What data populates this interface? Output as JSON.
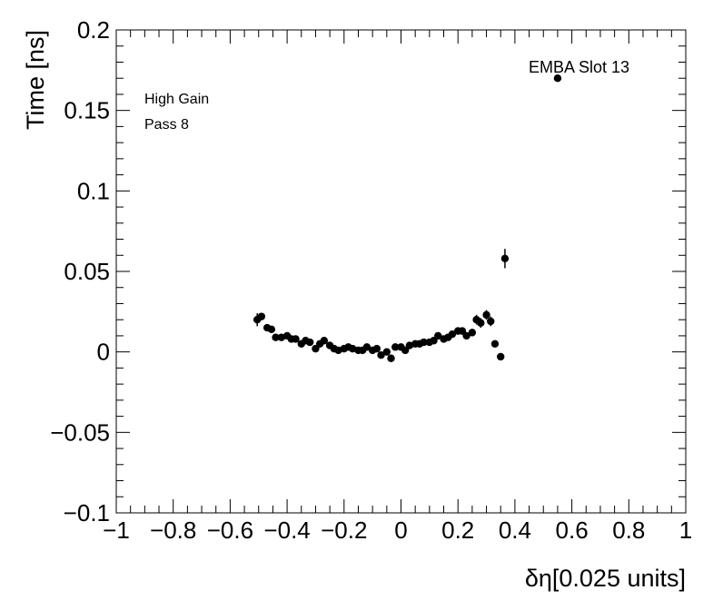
{
  "chart_data": {
    "type": "scatter",
    "title": "",
    "xlabel": "δη[0.025 units]",
    "ylabel": "Time [ns]",
    "xlim": [
      -1,
      1
    ],
    "ylim": [
      -0.1,
      0.2
    ],
    "x_ticks": [
      -1,
      -0.8,
      -0.6,
      -0.4,
      -0.2,
      0,
      0.2,
      0.4,
      0.6,
      0.8,
      1
    ],
    "x_tick_labels": [
      "−1",
      "−0.8",
      "−0.6",
      "−0.4",
      "−0.2",
      "0",
      "0.2",
      "0.4",
      "0.6",
      "0.8",
      "1"
    ],
    "y_ticks": [
      -0.1,
      -0.05,
      0,
      0.05,
      0.1,
      0.15,
      0.2
    ],
    "y_tick_labels": [
      "−0.1",
      "−0.05",
      "0",
      "0.05",
      "0.1",
      "0.15",
      "0.2"
    ],
    "annotations": [
      "High Gain",
      "Pass 8",
      "EMBA Slot 13"
    ],
    "grid": false,
    "marker_color": "#000000",
    "points": [
      {
        "x": -0.505,
        "y": 0.02,
        "err": 0.004
      },
      {
        "x": -0.49,
        "y": 0.022,
        "err": 0.002
      },
      {
        "x": -0.47,
        "y": 0.015,
        "err": 0.002
      },
      {
        "x": -0.455,
        "y": 0.014,
        "err": 0.002
      },
      {
        "x": -0.44,
        "y": 0.009,
        "err": 0.002
      },
      {
        "x": -0.42,
        "y": 0.009,
        "err": 0.002
      },
      {
        "x": -0.4,
        "y": 0.01,
        "err": 0.002
      },
      {
        "x": -0.385,
        "y": 0.008,
        "err": 0.002
      },
      {
        "x": -0.37,
        "y": 0.008,
        "err": 0.002
      },
      {
        "x": -0.35,
        "y": 0.005,
        "err": 0.002
      },
      {
        "x": -0.335,
        "y": 0.007,
        "err": 0.002
      },
      {
        "x": -0.32,
        "y": 0.006,
        "err": 0.002
      },
      {
        "x": -0.3,
        "y": 0.002,
        "err": 0.002
      },
      {
        "x": -0.285,
        "y": 0.005,
        "err": 0.002
      },
      {
        "x": -0.27,
        "y": 0.007,
        "err": 0.002
      },
      {
        "x": -0.25,
        "y": 0.004,
        "err": 0.002
      },
      {
        "x": -0.235,
        "y": 0.002,
        "err": 0.002
      },
      {
        "x": -0.22,
        "y": 0.001,
        "err": 0.002
      },
      {
        "x": -0.2,
        "y": 0.002,
        "err": 0.002
      },
      {
        "x": -0.185,
        "y": 0.003,
        "err": 0.002
      },
      {
        "x": -0.17,
        "y": 0.002,
        "err": 0.002
      },
      {
        "x": -0.15,
        "y": 0.001,
        "err": 0.002
      },
      {
        "x": -0.135,
        "y": 0.001,
        "err": 0.002
      },
      {
        "x": -0.12,
        "y": 0.003,
        "err": 0.002
      },
      {
        "x": -0.1,
        "y": 0.001,
        "err": 0.002
      },
      {
        "x": -0.085,
        "y": 0.002,
        "err": 0.002
      },
      {
        "x": -0.07,
        "y": -0.002,
        "err": 0.002
      },
      {
        "x": -0.05,
        "y": 0.0,
        "err": 0.002
      },
      {
        "x": -0.035,
        "y": -0.004,
        "err": 0.002
      },
      {
        "x": -0.02,
        "y": 0.003,
        "err": 0.002
      },
      {
        "x": 0.0,
        "y": 0.003,
        "err": 0.002
      },
      {
        "x": 0.015,
        "y": 0.001,
        "err": 0.002
      },
      {
        "x": 0.03,
        "y": 0.004,
        "err": 0.002
      },
      {
        "x": 0.05,
        "y": 0.005,
        "err": 0.002
      },
      {
        "x": 0.065,
        "y": 0.005,
        "err": 0.002
      },
      {
        "x": 0.08,
        "y": 0.006,
        "err": 0.002
      },
      {
        "x": 0.1,
        "y": 0.006,
        "err": 0.002
      },
      {
        "x": 0.115,
        "y": 0.007,
        "err": 0.002
      },
      {
        "x": 0.13,
        "y": 0.01,
        "err": 0.002
      },
      {
        "x": 0.15,
        "y": 0.008,
        "err": 0.002
      },
      {
        "x": 0.165,
        "y": 0.009,
        "err": 0.002
      },
      {
        "x": 0.18,
        "y": 0.011,
        "err": 0.002
      },
      {
        "x": 0.2,
        "y": 0.013,
        "err": 0.002
      },
      {
        "x": 0.215,
        "y": 0.013,
        "err": 0.002
      },
      {
        "x": 0.23,
        "y": 0.01,
        "err": 0.002
      },
      {
        "x": 0.25,
        "y": 0.012,
        "err": 0.002
      },
      {
        "x": 0.265,
        "y": 0.02,
        "err": 0.003
      },
      {
        "x": 0.28,
        "y": 0.018,
        "err": 0.003
      },
      {
        "x": 0.3,
        "y": 0.023,
        "err": 0.003
      },
      {
        "x": 0.315,
        "y": 0.019,
        "err": 0.003
      },
      {
        "x": 0.33,
        "y": 0.005,
        "err": 0.002
      },
      {
        "x": 0.35,
        "y": -0.003,
        "err": 0.002
      },
      {
        "x": 0.365,
        "y": 0.058,
        "err": 0.006
      },
      {
        "x": 0.55,
        "y": 0.17,
        "err": 0.002
      }
    ]
  }
}
